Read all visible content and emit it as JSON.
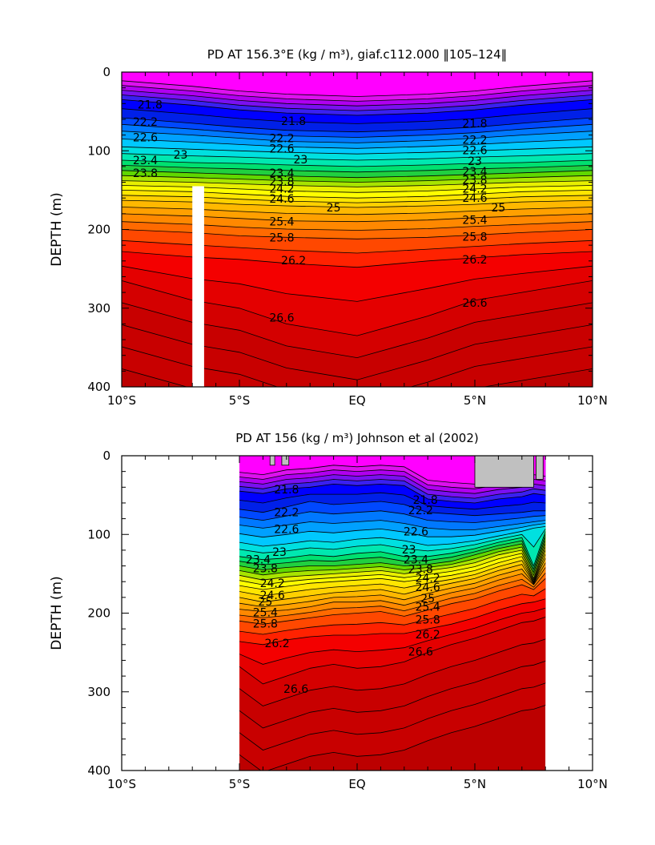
{
  "colors": {
    "bands": [
      "#ff00ff",
      "#dd11ee",
      "#b000f0",
      "#7a10f0",
      "#3a20f0",
      "#0000ff",
      "#0020e8",
      "#0048ff",
      "#0078ff",
      "#00a0ff",
      "#00c8ff",
      "#00e0e0",
      "#00e8b0",
      "#00e070",
      "#20d040",
      "#60d800",
      "#a8e400",
      "#e8f000",
      "#ffff00",
      "#ffe600",
      "#ffd000",
      "#ffb800",
      "#ffa000",
      "#ff8800",
      "#ff6a00",
      "#ff4800",
      "#ff2200",
      "#f40000",
      "#e40000",
      "#d40000",
      "#c80000",
      "#bc0000"
    ],
    "land": "#c0c0c0",
    "contour_line": "#000000"
  },
  "chart_data": [
    {
      "type": "heatmap",
      "title": "PD AT 156.3°E (kg / m³), giaf.c112.000 ‖105–124‖",
      "xlabel": "",
      "ylabel": "DEPTH (m)",
      "xlim": [
        -10,
        10
      ],
      "ylim": [
        400,
        0
      ],
      "x_ticks": [
        -10,
        -5,
        0,
        5,
        10
      ],
      "x_tick_labels": [
        "10°S",
        "5°S",
        "EQ",
        "5°N",
        "10°N"
      ],
      "y_ticks": [
        0,
        100,
        200,
        300,
        400
      ],
      "y_tick_labels": [
        "0",
        "100",
        "200",
        "300",
        "400"
      ],
      "contour_interval": 0.2,
      "masked_column": {
        "lon_range": [
          -7.0,
          -6.5
        ],
        "depth_range": [
          145,
          400
        ]
      },
      "isopycnal_depths_m": {
        "lon": [
          -10,
          -7,
          -5,
          -3,
          0,
          3,
          5,
          7,
          10
        ],
        "21.8": [
          35,
          42,
          48,
          52,
          55,
          52,
          48,
          42,
          35
        ],
        "22.2": [
          58,
          65,
          70,
          74,
          76,
          73,
          70,
          65,
          58
        ],
        "22.6": [
          75,
          80,
          84,
          88,
          90,
          87,
          84,
          80,
          75
        ],
        "23.0": [
          95,
          98,
          100,
          102,
          104,
          102,
          100,
          98,
          95
        ],
        "23.4": [
          112,
          115,
          116,
          118,
          120,
          118,
          116,
          115,
          112
        ],
        "23.8": [
          125,
          128,
          130,
          132,
          134,
          132,
          130,
          128,
          125
        ],
        "24.2": [
          138,
          140,
          142,
          144,
          146,
          144,
          142,
          140,
          138
        ],
        "24.6": [
          150,
          152,
          155,
          158,
          160,
          158,
          155,
          152,
          150
        ],
        "25.0": [
          163,
          165,
          168,
          170,
          172,
          170,
          168,
          165,
          163
        ],
        "25.4": [
          180,
          183,
          186,
          189,
          190,
          188,
          185,
          183,
          180
        ],
        "25.8": [
          200,
          204,
          208,
          210,
          212,
          210,
          207,
          204,
          200
        ],
        "26.2": [
          228,
          235,
          238,
          243,
          248,
          240,
          236,
          232,
          228
        ],
        "26.6": [
          265,
          290,
          300,
          320,
          335,
          310,
          290,
          280,
          265
        ]
      },
      "contour_labels": [
        {
          "text": "21.8",
          "lon": -8.8,
          "depth": 41
        },
        {
          "text": "21.8",
          "lon": -2.7,
          "depth": 62
        },
        {
          "text": "21.8",
          "lon": 5.0,
          "depth": 65
        },
        {
          "text": "22.2",
          "lon": -9.0,
          "depth": 63
        },
        {
          "text": "22.2",
          "lon": -3.2,
          "depth": 84
        },
        {
          "text": "22.2",
          "lon": 5.0,
          "depth": 86
        },
        {
          "text": "22.6",
          "lon": -9.0,
          "depth": 83
        },
        {
          "text": "22.6",
          "lon": -3.2,
          "depth": 97
        },
        {
          "text": "22.6",
          "lon": 5.0,
          "depth": 99
        },
        {
          "text": "23",
          "lon": -7.5,
          "depth": 105
        },
        {
          "text": "23",
          "lon": -2.4,
          "depth": 111
        },
        {
          "text": "23",
          "lon": 5.0,
          "depth": 113
        },
        {
          "text": "23.4",
          "lon": -9.0,
          "depth": 112
        },
        {
          "text": "23.4",
          "lon": -3.2,
          "depth": 128
        },
        {
          "text": "23.4",
          "lon": 5.0,
          "depth": 126
        },
        {
          "text": "23.8",
          "lon": -9.0,
          "depth": 128
        },
        {
          "text": "23.8",
          "lon": -3.2,
          "depth": 139
        },
        {
          "text": "23.8",
          "lon": 5.0,
          "depth": 137
        },
        {
          "text": "24.2",
          "lon": -3.2,
          "depth": 148
        },
        {
          "text": "24.2",
          "lon": 5.0,
          "depth": 148
        },
        {
          "text": "24.6",
          "lon": -3.2,
          "depth": 161
        },
        {
          "text": "24.6",
          "lon": 5.0,
          "depth": 160
        },
        {
          "text": "25",
          "lon": -1.0,
          "depth": 172
        },
        {
          "text": "25",
          "lon": 6.0,
          "depth": 172
        },
        {
          "text": "25.4",
          "lon": -3.2,
          "depth": 190
        },
        {
          "text": "25.4",
          "lon": 5.0,
          "depth": 188
        },
        {
          "text": "25.8",
          "lon": -3.2,
          "depth": 210
        },
        {
          "text": "25.8",
          "lon": 5.0,
          "depth": 209
        },
        {
          "text": "26.2",
          "lon": -2.7,
          "depth": 239
        },
        {
          "text": "26.2",
          "lon": 5.0,
          "depth": 238
        },
        {
          "text": "26.6",
          "lon": -3.2,
          "depth": 312
        },
        {
          "text": "26.6",
          "lon": 5.0,
          "depth": 293
        }
      ]
    },
    {
      "type": "heatmap",
      "title": "PD AT 156 (kg / m³) Johnson et al (2002)",
      "xlabel": "",
      "ylabel": "DEPTH (m)",
      "xlim": [
        -10,
        10
      ],
      "ylim": [
        400,
        0
      ],
      "x_ticks": [
        -10,
        -5,
        0,
        5,
        10
      ],
      "x_tick_labels": [
        "10°S",
        "5°S",
        "EQ",
        "5°N",
        "10°N"
      ],
      "y_ticks": [
        0,
        100,
        200,
        300,
        400
      ],
      "y_tick_labels": [
        "0",
        "100",
        "200",
        "300",
        "400"
      ],
      "contour_interval": 0.2,
      "data_lon_range": [
        -5,
        8
      ],
      "isopycnal_depths_m": {
        "lon": [
          -5,
          -4,
          -3,
          -2,
          -1,
          0,
          1,
          2,
          3,
          4,
          5,
          6,
          7,
          7.5,
          8
        ],
        "21.8": [
          45,
          48,
          42,
          40,
          36,
          38,
          36,
          38,
          55,
          58,
          60,
          55,
          52,
          48,
          50
        ],
        "22.2": [
          68,
          72,
          65,
          58,
          62,
          60,
          58,
          62,
          72,
          74,
          76,
          74,
          72,
          70,
          70
        ],
        "22.6": [
          88,
          92,
          88,
          84,
          86,
          84,
          82,
          86,
          92,
          94,
          94,
          90,
          86,
          84,
          82
        ],
        "23.0": [
          110,
          115,
          112,
          108,
          110,
          106,
          104,
          108,
          114,
          112,
          108,
          102,
          96,
          92,
          90
        ],
        "23.4": [
          128,
          132,
          130,
          126,
          128,
          124,
          122,
          128,
          128,
          124,
          118,
          110,
          104,
          140,
          96
        ],
        "23.8": [
          140,
          145,
          142,
          140,
          140,
          138,
          136,
          140,
          138,
          134,
          126,
          118,
          112,
          148,
          104
        ],
        "24.2": [
          152,
          158,
          154,
          152,
          150,
          148,
          146,
          150,
          146,
          142,
          136,
          126,
          120,
          156,
          112
        ],
        "24.6": [
          165,
          170,
          166,
          162,
          160,
          158,
          156,
          160,
          156,
          152,
          146,
          136,
          128,
          160,
          120
        ],
        "25.0": [
          180,
          186,
          182,
          178,
          174,
          172,
          170,
          176,
          168,
          162,
          156,
          146,
          138,
          162,
          130
        ],
        "25.4": [
          195,
          198,
          196,
          192,
          186,
          186,
          184,
          190,
          182,
          174,
          168,
          158,
          150,
          164,
          142
        ],
        "25.8": [
          210,
          214,
          210,
          206,
          202,
          200,
          198,
          204,
          196,
          188,
          182,
          172,
          164,
          170,
          156
        ],
        "26.2": [
          236,
          240,
          234,
          230,
          228,
          228,
          226,
          226,
          220,
          214,
          206,
          196,
          188,
          186,
          182
        ],
        "26.6": [
          268,
          290,
          280,
          270,
          265,
          270,
          268,
          262,
          250,
          240,
          232,
          222,
          212,
          210,
          205
        ]
      },
      "land_patches": [
        {
          "lon_range": [
            -3.7,
            -3.5
          ],
          "depth_range": [
            0,
            12
          ]
        },
        {
          "lon_range": [
            -3.2,
            -2.9
          ],
          "depth_range": [
            0,
            12
          ]
        },
        {
          "lon_range": [
            5.0,
            7.5
          ],
          "depth_range": [
            0,
            40
          ]
        },
        {
          "lon_range": [
            7.6,
            7.9
          ],
          "depth_range": [
            0,
            30
          ]
        }
      ],
      "contour_labels": [
        {
          "text": "21.8",
          "lon": -3.0,
          "depth": 43
        },
        {
          "text": "21.8",
          "lon": 2.9,
          "depth": 56
        },
        {
          "text": "22.2",
          "lon": -3.0,
          "depth": 72
        },
        {
          "text": "22.2",
          "lon": 2.7,
          "depth": 69
        },
        {
          "text": "22.6",
          "lon": -3.0,
          "depth": 93
        },
        {
          "text": "22.6",
          "lon": 2.5,
          "depth": 96
        },
        {
          "text": "23",
          "lon": -3.3,
          "depth": 122
        },
        {
          "text": "23",
          "lon": 2.2,
          "depth": 119
        },
        {
          "text": "23.4",
          "lon": -4.2,
          "depth": 132
        },
        {
          "text": "23.4",
          "lon": 2.5,
          "depth": 132
        },
        {
          "text": "23.8",
          "lon": -3.9,
          "depth": 143
        },
        {
          "text": "23.8",
          "lon": 2.7,
          "depth": 144
        },
        {
          "text": "24.2",
          "lon": -3.6,
          "depth": 162
        },
        {
          "text": "24.2",
          "lon": 3.0,
          "depth": 155
        },
        {
          "text": "24.6",
          "lon": -3.6,
          "depth": 177
        },
        {
          "text": "24.6",
          "lon": 3.0,
          "depth": 167
        },
        {
          "text": "25",
          "lon": -3.9,
          "depth": 185
        },
        {
          "text": "25",
          "lon": 3.0,
          "depth": 181
        },
        {
          "text": "25.4",
          "lon": -3.9,
          "depth": 199
        },
        {
          "text": "25.4",
          "lon": 3.0,
          "depth": 192
        },
        {
          "text": "25.8",
          "lon": -3.9,
          "depth": 213
        },
        {
          "text": "25.8",
          "lon": 3.0,
          "depth": 208
        },
        {
          "text": "26.2",
          "lon": -3.4,
          "depth": 238
        },
        {
          "text": "26.2",
          "lon": 3.0,
          "depth": 227
        },
        {
          "text": "26.6",
          "lon": -2.6,
          "depth": 296
        },
        {
          "text": "26.6",
          "lon": 2.7,
          "depth": 249
        }
      ]
    }
  ]
}
